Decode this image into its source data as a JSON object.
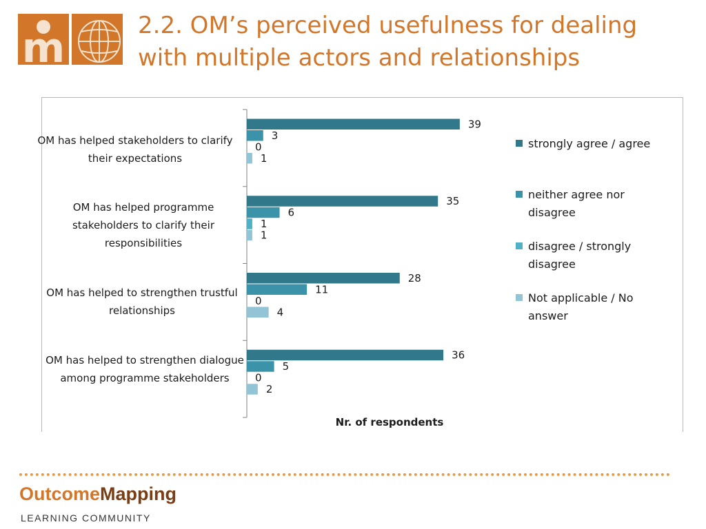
{
  "header": {
    "title": "2.2. OM’s perceived usefulness for dealing with multiple actors and relationships",
    "logo_letter": "m",
    "title_color": "#d2762a",
    "logo_bg": "#d2762a",
    "logo_fg": "#f5e3d0"
  },
  "chart_data": {
    "type": "bar",
    "orientation": "horizontal",
    "categories": [
      "OM has helped stakeholders to clarify their expectations",
      "OM has helped programme stakeholders to clarify their responsibilities",
      "OM has helped to strengthen trustful relationships",
      "OM has helped to strengthen dialogue among programme stakeholders"
    ],
    "series": [
      {
        "name": "strongly agree / agree",
        "values": [
          39,
          35,
          28,
          36
        ],
        "color": "#31788a"
      },
      {
        "name": "neither agree nor disagree",
        "values": [
          3,
          6,
          11,
          5
        ],
        "color": "#3a93a8"
      },
      {
        "name": "disagree / strongly disagree",
        "values": [
          0,
          1,
          0,
          0
        ],
        "color": "#4fb0c6"
      },
      {
        "name": "Not applicable / No answer",
        "values": [
          1,
          1,
          4,
          2
        ],
        "color": "#93c4d6"
      }
    ],
    "xlabel": "Nr. of respondents",
    "ylabel": "",
    "xlim": [
      0,
      45
    ],
    "grid": false,
    "legend_position": "right"
  },
  "footer": {
    "brand_a": "Outcome",
    "brand_b": "Mapping",
    "subtitle": "LEARNING  COMMUNITY",
    "brand_a_color": "#d2762a",
    "dot_color": "#e49b4a"
  }
}
